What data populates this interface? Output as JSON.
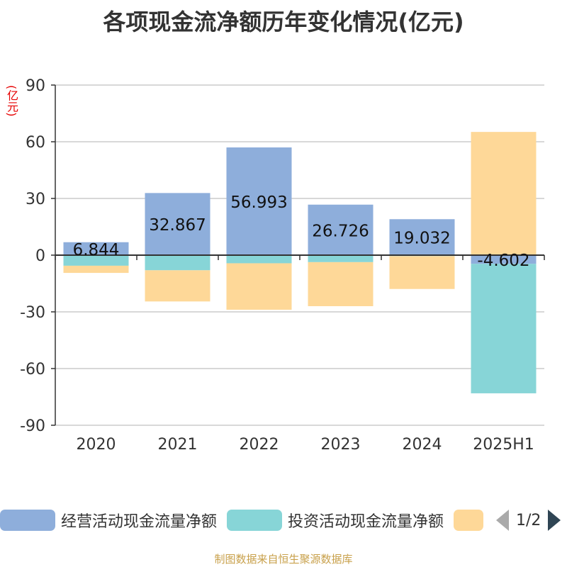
{
  "title": "各项现金流净额历年变化情况(亿元)",
  "unit": "(亿元)",
  "source": "制图数据来自恒生聚源数据库",
  "legend": {
    "items": [
      {
        "label": "经营活动现金流量净额",
        "color": "#8eaedb"
      },
      {
        "label": "投资活动现金流量净额",
        "color": "#87d5d7"
      },
      {
        "label": "",
        "color": "#fed898"
      }
    ],
    "page": "1/2"
  },
  "chart_data": {
    "type": "bar",
    "stacked": true,
    "categories": [
      "2020",
      "2021",
      "2022",
      "2023",
      "2024",
      "2025H1"
    ],
    "ylim": [
      -90,
      90
    ],
    "yticks": [
      90,
      60,
      30,
      0,
      -30,
      -60,
      -90
    ],
    "grid": true,
    "legend_position": "bottom",
    "series": [
      {
        "name": "经营活动现金流量净额",
        "color": "#8eaedb",
        "values": [
          6.844,
          32.867,
          56.993,
          26.726,
          19.032,
          -4.602
        ],
        "labels": [
          "6.844",
          "32.867",
          "56.993",
          "26.726",
          "19.032",
          "-4.602"
        ]
      },
      {
        "name": "投资活动现金流量净额",
        "color": "#87d5d7",
        "values": [
          -5.6,
          -8.0,
          -4.3,
          -3.7,
          -0.5,
          -68.5
        ]
      },
      {
        "color": "#fed898",
        "values": [
          -3.8,
          -16.5,
          -24.6,
          -23.3,
          -17.4,
          65.2
        ]
      }
    ]
  }
}
